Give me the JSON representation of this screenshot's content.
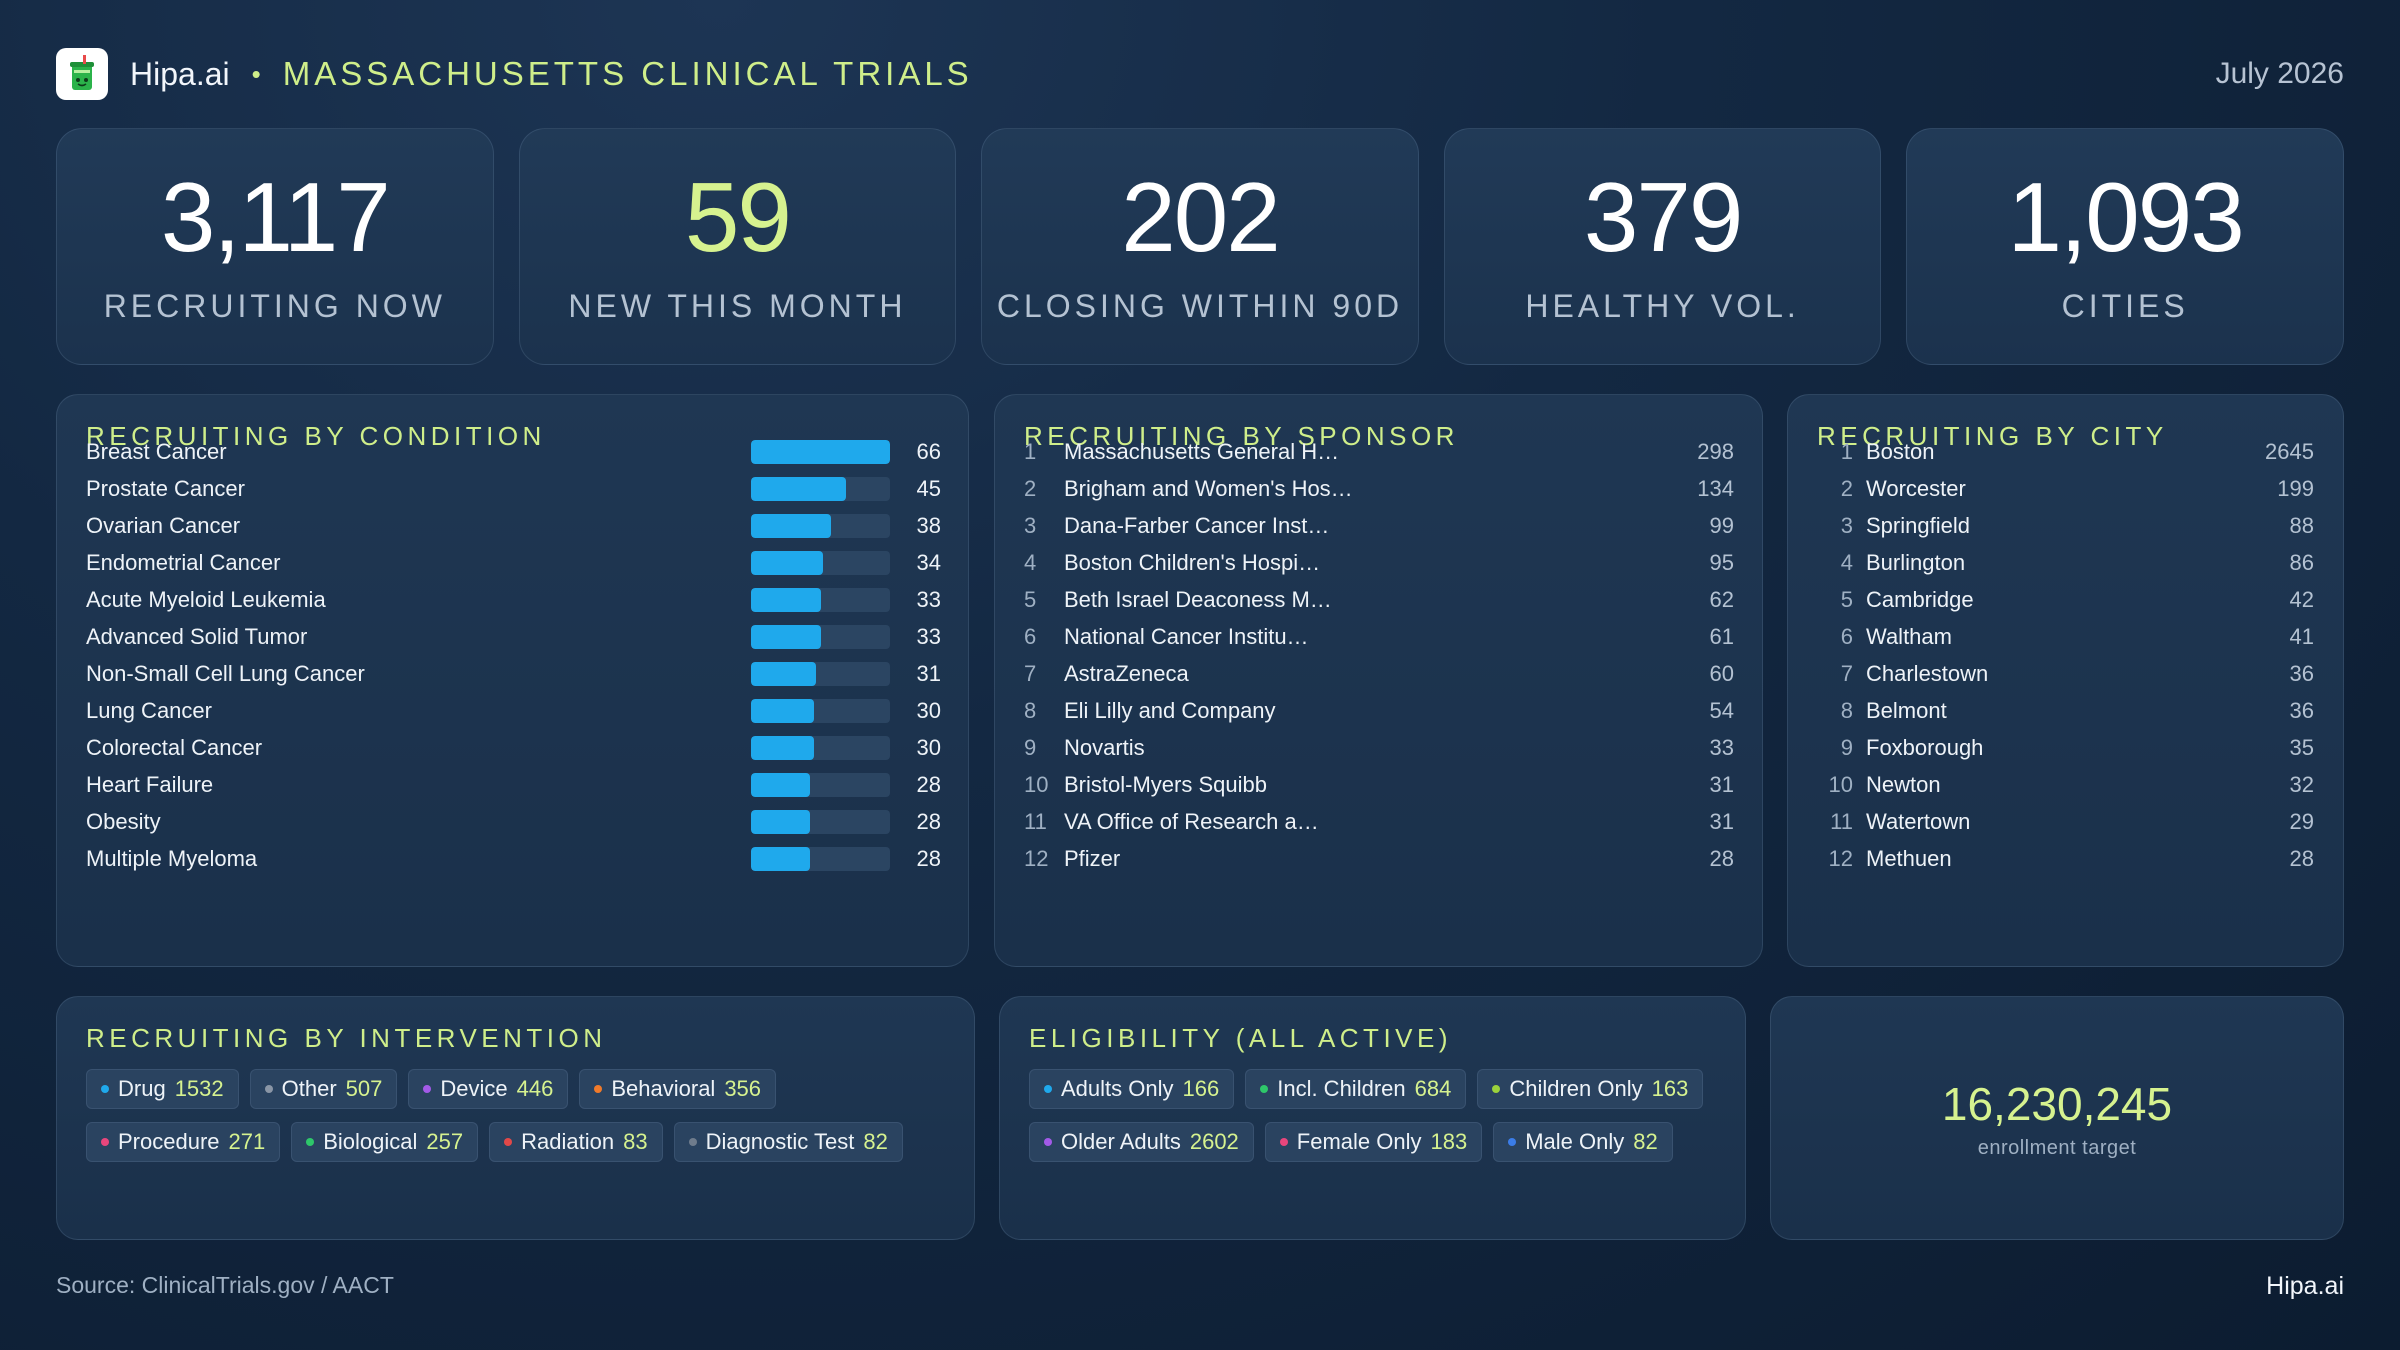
{
  "header": {
    "brand": "Hipa.ai",
    "separator": "•",
    "title": "MASSACHUSETTS CLINICAL TRIALS",
    "date": "July 2026",
    "logo_icon": "drink-cup-icon"
  },
  "kpis": [
    {
      "value": "3,117",
      "label": "RECRUITING NOW"
    },
    {
      "value": "59",
      "label": "NEW THIS MONTH"
    },
    {
      "value": "202",
      "label": "CLOSING WITHIN 90D"
    },
    {
      "value": "379",
      "label": "HEALTHY VOL."
    },
    {
      "value": "1,093",
      "label": "CITIES"
    }
  ],
  "by_condition": {
    "title": "RECRUITING BY CONDITION",
    "bar_color": "#1fa9ec",
    "max": 66,
    "items": [
      {
        "name": "Breast Cancer",
        "value": 66
      },
      {
        "name": "Prostate Cancer",
        "value": 45
      },
      {
        "name": "Ovarian Cancer",
        "value": 38
      },
      {
        "name": "Endometrial Cancer",
        "value": 34
      },
      {
        "name": "Acute Myeloid Leukemia",
        "value": 33
      },
      {
        "name": "Advanced Solid Tumor",
        "value": 33
      },
      {
        "name": "Non-Small Cell Lung Cancer",
        "value": 31
      },
      {
        "name": "Lung Cancer",
        "value": 30
      },
      {
        "name": "Colorectal Cancer",
        "value": 30
      },
      {
        "name": "Heart Failure",
        "value": 28
      },
      {
        "name": "Obesity",
        "value": 28
      },
      {
        "name": "Multiple Myeloma",
        "value": 28
      }
    ]
  },
  "by_sponsor": {
    "title": "RECRUITING BY SPONSOR",
    "items": [
      {
        "rank": "1",
        "name": "Massachusetts General H…",
        "value": "298"
      },
      {
        "rank": "2",
        "name": "Brigham and Women's Hos…",
        "value": "134"
      },
      {
        "rank": "3",
        "name": "Dana-Farber Cancer Inst…",
        "value": "99"
      },
      {
        "rank": "4",
        "name": "Boston Children's Hospi…",
        "value": "95"
      },
      {
        "rank": "5",
        "name": "Beth Israel Deaconess M…",
        "value": "62"
      },
      {
        "rank": "6",
        "name": "National Cancer Institu…",
        "value": "61"
      },
      {
        "rank": "7",
        "name": "AstraZeneca",
        "value": "60"
      },
      {
        "rank": "8",
        "name": "Eli Lilly and Company",
        "value": "54"
      },
      {
        "rank": "9",
        "name": "Novartis",
        "value": "33"
      },
      {
        "rank": "10",
        "name": "Bristol-Myers Squibb",
        "value": "31"
      },
      {
        "rank": "11",
        "name": "VA Office of Research a…",
        "value": "31"
      },
      {
        "rank": "12",
        "name": "Pfizer",
        "value": "28"
      }
    ]
  },
  "by_city": {
    "title": "RECRUITING BY CITY",
    "items": [
      {
        "rank": "1",
        "name": "Boston",
        "value": "2645"
      },
      {
        "rank": "2",
        "name": "Worcester",
        "value": "199"
      },
      {
        "rank": "3",
        "name": "Springfield",
        "value": "88"
      },
      {
        "rank": "4",
        "name": "Burlington",
        "value": "86"
      },
      {
        "rank": "5",
        "name": "Cambridge",
        "value": "42"
      },
      {
        "rank": "6",
        "name": "Waltham",
        "value": "41"
      },
      {
        "rank": "7",
        "name": "Charlestown",
        "value": "36"
      },
      {
        "rank": "8",
        "name": "Belmont",
        "value": "36"
      },
      {
        "rank": "9",
        "name": "Foxborough",
        "value": "35"
      },
      {
        "rank": "10",
        "name": "Newton",
        "value": "32"
      },
      {
        "rank": "11",
        "name": "Watertown",
        "value": "29"
      },
      {
        "rank": "12",
        "name": "Methuen",
        "value": "28"
      }
    ]
  },
  "by_intervention": {
    "title": "RECRUITING BY INTERVENTION",
    "chips": [
      {
        "label": "Drug",
        "value": "1532",
        "color": "#1fa9ec"
      },
      {
        "label": "Other",
        "value": "507",
        "color": "#8a96a6"
      },
      {
        "label": "Device",
        "value": "446",
        "color": "#a35ae8"
      },
      {
        "label": "Behavioral",
        "value": "356",
        "color": "#f07a2a"
      },
      {
        "label": "Procedure",
        "value": "271",
        "color": "#e8467c"
      },
      {
        "label": "Biological",
        "value": "257",
        "color": "#2ec76a"
      },
      {
        "label": "Radiation",
        "value": "83",
        "color": "#e24848"
      },
      {
        "label": "Diagnostic Test",
        "value": "82",
        "color": "#6f7c8c"
      }
    ]
  },
  "eligibility": {
    "title": "ELIGIBILITY (ALL ACTIVE)",
    "chips": [
      {
        "label": "Adults Only",
        "value": "166",
        "color": "#1fa9ec"
      },
      {
        "label": "Incl. Children",
        "value": "684",
        "color": "#2ec76a"
      },
      {
        "label": "Children Only",
        "value": "163",
        "color": "#9bd23c"
      },
      {
        "label": "Older Adults",
        "value": "2602",
        "color": "#a35ae8"
      },
      {
        "label": "Female Only",
        "value": "183",
        "color": "#e8467c"
      },
      {
        "label": "Male Only",
        "value": "82",
        "color": "#3b7de8"
      }
    ]
  },
  "enrollment": {
    "value": "16,230,245",
    "label": "enrollment target"
  },
  "footer": {
    "source": "Source: ClinicalTrials.gov / AACT",
    "brand": "Hipa.ai"
  }
}
